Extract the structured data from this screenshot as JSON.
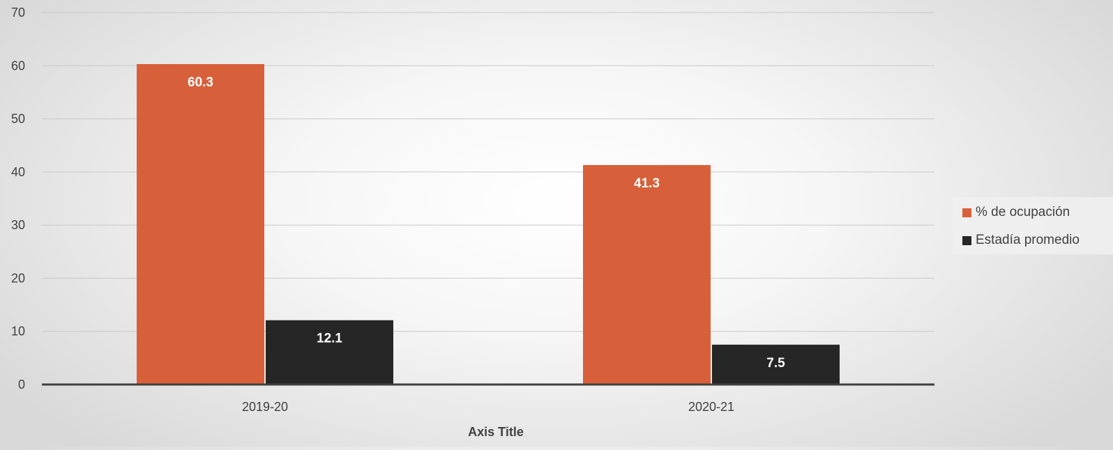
{
  "colors": {
    "series_0": "#d7603a",
    "series_1": "#262626"
  },
  "chart_data": {
    "type": "bar",
    "title": "",
    "xlabel": "Axis Title",
    "ylabel": "",
    "categories": [
      "2019-20",
      "2020-21"
    ],
    "series": [
      {
        "name": "% de ocupación",
        "values": [
          60.3,
          41.3
        ]
      },
      {
        "name": "Estadía promedio",
        "values": [
          12.1,
          7.5
        ]
      }
    ],
    "ylim": [
      0,
      70
    ],
    "yticks": [
      0,
      10,
      20,
      30,
      40,
      50,
      60,
      70
    ],
    "grid": true,
    "legend_position": "right",
    "data_labels": true
  }
}
